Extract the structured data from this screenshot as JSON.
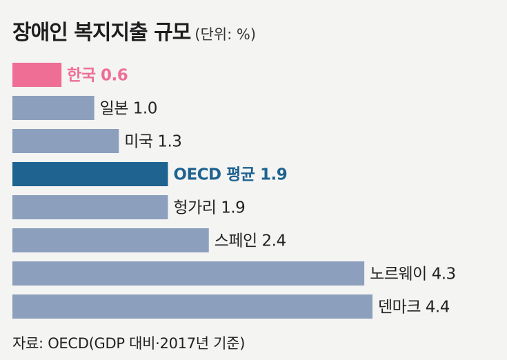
{
  "title": "장애인 복지지출 규모",
  "unit": "(단위: %)",
  "source": "자료: OECD(GDP 대비·2017년 기준)",
  "colors": {
    "default_bar": "#8c9fbd",
    "korea": "#ee6e95",
    "oecd": "#1f6390",
    "text": "#222222"
  },
  "chart_data": {
    "type": "bar",
    "orientation": "horizontal",
    "categories": [
      "한국",
      "일본",
      "미국",
      "OECD 평균",
      "헝가리",
      "스페인",
      "노르웨이",
      "덴마크"
    ],
    "values": [
      0.6,
      1.0,
      1.3,
      1.9,
      1.9,
      2.4,
      4.3,
      4.4
    ],
    "value_labels": [
      "0.6",
      "1.0",
      "1.3",
      "1.9",
      "1.9",
      "2.4",
      "4.3",
      "4.4"
    ],
    "highlights": {
      "한국": "korea",
      "OECD 평균": "oecd"
    },
    "xlim": [
      0,
      4.4
    ]
  }
}
